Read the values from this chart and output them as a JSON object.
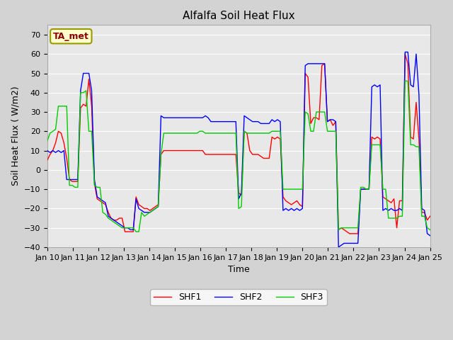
{
  "title": "Alfalfa Soil Heat Flux",
  "xlabel": "Time",
  "ylabel": "Soil Heat Flux ( W/m2)",
  "ylim": [
    -40,
    75
  ],
  "yticks": [
    -40,
    -30,
    -20,
    -10,
    0,
    10,
    20,
    30,
    40,
    50,
    60,
    70
  ],
  "fig_bg": "#d3d3d3",
  "plot_bg": "#e8e8e8",
  "grid_color": "white",
  "annotation_text": "TA_met",
  "annotation_bg": "#ffffcc",
  "annotation_border": "#999900",
  "annotation_text_color": "#8b0000",
  "line_colors": {
    "SHF1": "#ff0000",
    "SHF2": "#0000ff",
    "SHF3": "#00cc00"
  },
  "line_width": 1.0,
  "xtick_labels": [
    "Jan 10",
    "Jan 11",
    "Jan 12",
    "Jan 13",
    "Jan 14",
    "Jan 15",
    "Jan 16",
    "Jan 17",
    "Jan 18",
    "Jan 19",
    "Jan 20",
    "Jan 21",
    "Jan 22",
    "Jan 23",
    "Jan 24",
    "Jan 25"
  ],
  "shf1": [
    5,
    8,
    10,
    14,
    20,
    19,
    14,
    6,
    -5,
    -6,
    -6,
    -6,
    32,
    34,
    33,
    47,
    33,
    -7,
    -15,
    -16,
    -17,
    -18,
    -22,
    -25,
    -26,
    -26,
    -25,
    -25,
    -32,
    -32,
    -32,
    -32,
    -14,
    -18,
    -19,
    -20,
    -20,
    -21,
    -20,
    -19,
    -18,
    8,
    10,
    10,
    10,
    10,
    10,
    10,
    10,
    10,
    10,
    10,
    10,
    10,
    10,
    10,
    10,
    8,
    8,
    8,
    8,
    8,
    8,
    8,
    8,
    8,
    8,
    8,
    8,
    -12,
    -13,
    20,
    19,
    10,
    8,
    8,
    8,
    7,
    6,
    6,
    6,
    17,
    16,
    17,
    16,
    -14,
    -16,
    -17,
    -18,
    -17,
    -16,
    -18,
    -19,
    50,
    48,
    24,
    27,
    27,
    26,
    54,
    55,
    25,
    26,
    23,
    25,
    -31,
    -30,
    -31,
    -32,
    -33,
    -33,
    -33,
    -33,
    -10,
    -10,
    -10,
    -10,
    17,
    16,
    17,
    16,
    -14,
    -15,
    -16,
    -17,
    -15,
    -30,
    -16,
    -16,
    60,
    55,
    17,
    16,
    35,
    16,
    -22,
    -22,
    -26,
    -24
  ],
  "shf2": [
    10,
    9,
    10,
    9,
    10,
    9,
    10,
    -5,
    -5,
    -5,
    -5,
    -5,
    41,
    50,
    50,
    50,
    41,
    -5,
    -14,
    -15,
    -16,
    -17,
    -24,
    -25,
    -26,
    -27,
    -28,
    -29,
    -30,
    -30,
    -31,
    -31,
    -15,
    -20,
    -21,
    -22,
    -22,
    -22,
    -21,
    -20,
    -19,
    28,
    27,
    27,
    27,
    27,
    27,
    27,
    27,
    27,
    27,
    27,
    27,
    27,
    27,
    27,
    27,
    28,
    27,
    25,
    25,
    25,
    25,
    25,
    25,
    25,
    25,
    25,
    25,
    -15,
    -12,
    28,
    27,
    26,
    25,
    25,
    25,
    24,
    24,
    24,
    24,
    26,
    25,
    26,
    25,
    -21,
    -20,
    -21,
    -20,
    -21,
    -20,
    -21,
    -20,
    54,
    55,
    55,
    55,
    55,
    55,
    55,
    55,
    25,
    26,
    26,
    25,
    -40,
    -39,
    -38,
    -38,
    -38,
    -38,
    -38,
    -38,
    -10,
    -10,
    -10,
    -10,
    43,
    44,
    43,
    44,
    -21,
    -20,
    -21,
    -20,
    -21,
    -21,
    -20,
    -21,
    61,
    61,
    44,
    43,
    60,
    39,
    -20,
    -21,
    -33,
    -34
  ],
  "shf3": [
    15,
    19,
    20,
    21,
    33,
    33,
    33,
    33,
    -8,
    -8,
    -9,
    -9,
    40,
    40,
    41,
    20,
    20,
    -8,
    -9,
    -9,
    -22,
    -23,
    -25,
    -26,
    -27,
    -28,
    -29,
    -30,
    -30,
    -30,
    -30,
    -30,
    -32,
    -32,
    -22,
    -24,
    -23,
    -22,
    -21,
    -20,
    -19,
    8,
    19,
    19,
    19,
    19,
    19,
    19,
    19,
    19,
    19,
    19,
    19,
    19,
    19,
    20,
    20,
    19,
    19,
    19,
    19,
    19,
    19,
    19,
    19,
    19,
    19,
    19,
    19,
    -20,
    -19,
    20,
    19,
    19,
    19,
    19,
    19,
    19,
    19,
    19,
    19,
    20,
    20,
    20,
    20,
    -10,
    -10,
    -10,
    -10,
    -10,
    -10,
    -10,
    -10,
    30,
    29,
    20,
    20,
    30,
    30,
    30,
    30,
    20,
    20,
    20,
    20,
    -31,
    -30,
    -30,
    -30,
    -30,
    -30,
    -30,
    -30,
    -9,
    -9,
    -10,
    -10,
    13,
    13,
    13,
    13,
    -10,
    -10,
    -25,
    -25,
    -25,
    -25,
    -24,
    -24,
    46,
    46,
    13,
    13,
    12,
    12,
    -24,
    -24,
    -30,
    -31
  ]
}
